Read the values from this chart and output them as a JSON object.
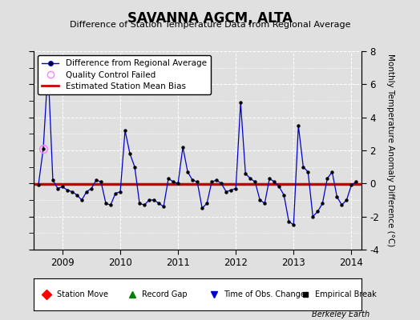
{
  "title": "SAVANNA AGCM, ALTA",
  "subtitle": "Difference of Station Temperature Data from Regional Average",
  "ylabel_right": "Monthly Temperature Anomaly Difference (°C)",
  "xlim": [
    2008.5,
    2014.17
  ],
  "ylim": [
    -4,
    8
  ],
  "yticks": [
    -4,
    -2,
    0,
    2,
    4,
    6,
    8
  ],
  "xticks": [
    2009,
    2010,
    2011,
    2012,
    2013,
    2014
  ],
  "bias_value": -0.05,
  "background_color": "#e0e0e0",
  "plot_bg_color": "#e0e0e0",
  "line_color": "#0000cc",
  "bias_color": "#cc0000",
  "watermark": "Berkeley Earth",
  "x_data": [
    2008.583,
    2008.667,
    2008.75,
    2008.833,
    2008.917,
    2009.0,
    2009.083,
    2009.167,
    2009.25,
    2009.333,
    2009.417,
    2009.5,
    2009.583,
    2009.667,
    2009.75,
    2009.833,
    2009.917,
    2010.0,
    2010.083,
    2010.167,
    2010.25,
    2010.333,
    2010.417,
    2010.5,
    2010.583,
    2010.667,
    2010.75,
    2010.833,
    2010.917,
    2011.0,
    2011.083,
    2011.167,
    2011.25,
    2011.333,
    2011.417,
    2011.5,
    2011.583,
    2011.667,
    2011.75,
    2011.833,
    2011.917,
    2012.0,
    2012.083,
    2012.167,
    2012.25,
    2012.333,
    2012.417,
    2012.5,
    2012.583,
    2012.667,
    2012.75,
    2012.833,
    2012.917,
    2013.0,
    2013.083,
    2013.167,
    2013.25,
    2013.333,
    2013.417,
    2013.5,
    2013.583,
    2013.667,
    2013.75,
    2013.833,
    2013.917,
    2014.0,
    2014.083
  ],
  "y_data": [
    -0.1,
    2.1,
    7.0,
    0.2,
    -0.3,
    -0.2,
    -0.4,
    -0.5,
    -0.7,
    -1.0,
    -0.5,
    -0.3,
    0.2,
    0.1,
    -1.2,
    -1.3,
    -0.6,
    -0.5,
    3.2,
    1.8,
    1.0,
    -1.2,
    -1.3,
    -1.0,
    -1.0,
    -1.2,
    -1.4,
    0.3,
    0.1,
    0.0,
    2.2,
    0.7,
    0.2,
    0.1,
    -1.5,
    -1.2,
    0.1,
    0.2,
    0.0,
    -0.5,
    -0.4,
    -0.3,
    4.9,
    0.6,
    0.3,
    0.1,
    -1.0,
    -1.2,
    0.3,
    0.1,
    -0.2,
    -0.7,
    -2.3,
    -2.5,
    3.5,
    1.0,
    0.7,
    -2.0,
    -1.7,
    -1.2,
    0.3,
    0.7,
    -0.8,
    -1.3,
    -1.0,
    -0.1,
    0.1
  ],
  "qc_failed_x": [
    2008.667
  ],
  "qc_failed_y": [
    2.1
  ],
  "grid_color": "#ffffff",
  "grid_linestyle": "--"
}
